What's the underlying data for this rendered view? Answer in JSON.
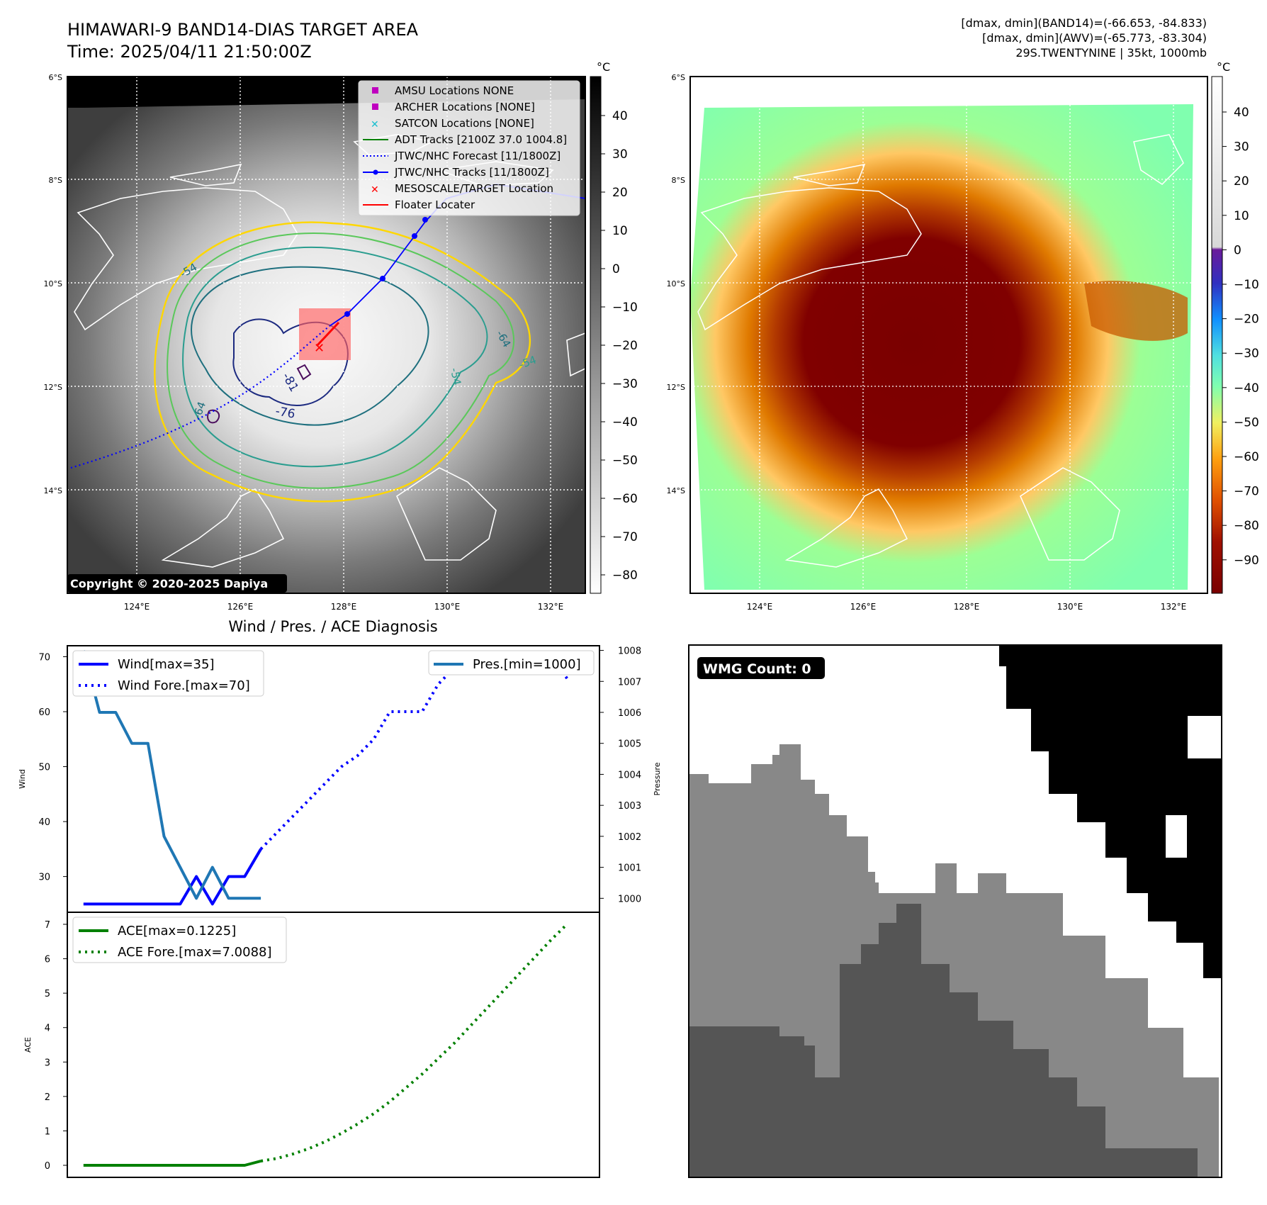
{
  "figure": {
    "title_line1": "HIMAWARI-9 BAND14-DIAS TARGET AREA",
    "title_line2": "Time: 2025/04/11 21:50:00Z",
    "info_line1": "[dmax, dmin](BAND14)=(-66.653, -84.833)",
    "info_line2": "[dmax, dmin](AWV)=(-65.773, -83.304)",
    "info_line3": "29S.TWENTYNINE | 35kt, 1000mb",
    "copyright": "Copyright © 2020-2025 Dapiya"
  },
  "map_axes": {
    "lat_ticks": [
      "6°S",
      "8°S",
      "10°S",
      "12°S",
      "14°S"
    ],
    "lon_ticks": [
      "124°E",
      "126°E",
      "128°E",
      "130°E",
      "132°E"
    ]
  },
  "ir_colorbar": {
    "unit": "°C",
    "ticks": [
      "40",
      "30",
      "20",
      "10",
      "0",
      "−10",
      "−20",
      "−30",
      "−40",
      "−50",
      "−60",
      "−70",
      "−80"
    ]
  },
  "awv_colorbar": {
    "unit": "°C",
    "ticks": [
      "40",
      "30",
      "20",
      "10",
      "0",
      "−10",
      "−20",
      "−30",
      "−40",
      "−50",
      "−60",
      "−70",
      "−80",
      "−90"
    ]
  },
  "map_legend": [
    {
      "symbol": "square",
      "color": "#bf00bf",
      "label": "AMSU Locations NONE"
    },
    {
      "symbol": "square",
      "color": "#bf00bf",
      "label": "ARCHER Locations [NONE]"
    },
    {
      "symbol": "x",
      "color": "#17becf",
      "label": "SATCON Locations [NONE]"
    },
    {
      "symbol": "line",
      "color": "#008000",
      "label": "ADT Tracks [2100Z 37.0 1004.8]"
    },
    {
      "symbol": "dotted",
      "color": "#0000ff",
      "label": "JTWC/NHC Forecast [11/1800Z]"
    },
    {
      "symbol": "line-dot",
      "color": "#0000ff",
      "label": "JTWC/NHC Tracks [11/1800Z]"
    },
    {
      "symbol": "x",
      "color": "#ff0000",
      "label": "MESOSCALE/TARGET Location"
    },
    {
      "symbol": "line",
      "color": "#ff0000",
      "label": "Floater Locater"
    }
  ],
  "contour_labels": [
    "-54",
    "-64",
    "-76",
    "-81",
    "-54",
    "-64",
    "-54"
  ],
  "chart_data": [
    {
      "type": "line",
      "title": "Wind / Pres. / ACE Diagnosis",
      "ylabel": "Wind",
      "y2label": "Pressure",
      "ylim": [
        23.5,
        72
      ],
      "y2lim": [
        999.55,
        1008.15
      ],
      "yticks": [
        "70",
        "60",
        "50",
        "40",
        "30"
      ],
      "y2ticks": [
        "1008",
        "1007",
        "1006",
        "1005",
        "1004",
        "1003",
        "1002",
        "1001",
        "1000"
      ],
      "xlim": [
        -1,
        32
      ],
      "series": [
        {
          "name": "Wind[max=35]",
          "axis": "left",
          "style": "solid",
          "color": "#0000ff",
          "x": [
            0,
            1,
            2,
            3,
            4,
            5,
            6,
            7,
            8,
            9,
            10,
            11
          ],
          "values": [
            25,
            25,
            25,
            25,
            25,
            25,
            25,
            30,
            25,
            30,
            30,
            35
          ]
        },
        {
          "name": "Wind Fore.[max=70]",
          "axis": "left",
          "style": "dotted",
          "color": "#0000ff",
          "x": [
            11,
            12,
            13,
            14,
            15,
            16,
            17,
            18,
            19,
            20,
            21,
            22,
            23,
            24,
            25,
            26,
            27,
            28,
            29,
            30
          ],
          "values": [
            35,
            38,
            41,
            44,
            47,
            50,
            52,
            55,
            60,
            60,
            60,
            65,
            68,
            70,
            70,
            70,
            70,
            70,
            70,
            66
          ]
        },
        {
          "name": "Pres.[min=1000]",
          "axis": "right",
          "style": "solid",
          "color": "#1f77b4",
          "x": [
            0,
            1,
            2,
            3,
            4,
            5,
            6,
            7,
            8,
            9,
            10,
            11
          ],
          "values": [
            1008,
            1006,
            1006,
            1005,
            1005,
            1002,
            1001,
            1000,
            1001,
            1000,
            1000,
            1000
          ]
        }
      ]
    },
    {
      "type": "line",
      "ylabel": "ACE",
      "ylim": [
        -0.35,
        7.35
      ],
      "yticks": [
        "7",
        "6",
        "5",
        "4",
        "3",
        "2",
        "1",
        "0"
      ],
      "xlim": [
        -1,
        32
      ],
      "series": [
        {
          "name": "ACE[max=0.1225]",
          "style": "solid",
          "color": "#008000",
          "x": [
            0,
            1,
            2,
            3,
            4,
            5,
            6,
            7,
            8,
            9,
            10,
            11
          ],
          "values": [
            0,
            0,
            0,
            0,
            0,
            0,
            0,
            0,
            0,
            0,
            0,
            0.1225
          ]
        },
        {
          "name": "ACE Fore.[max=7.0088]",
          "style": "dotted",
          "color": "#008000",
          "x": [
            11,
            12,
            13,
            14,
            15,
            16,
            17,
            18,
            19,
            20,
            21,
            22,
            23,
            24,
            25,
            26,
            27,
            28,
            29,
            30
          ],
          "values": [
            0.1225,
            0.2,
            0.33,
            0.49,
            0.69,
            0.93,
            1.2,
            1.5,
            1.85,
            2.25,
            2.65,
            3.1,
            3.55,
            4.05,
            4.55,
            5.05,
            5.55,
            6.05,
            6.55,
            7.0088
          ]
        }
      ]
    }
  ],
  "wmg": {
    "label": "WMG Count: 0"
  }
}
